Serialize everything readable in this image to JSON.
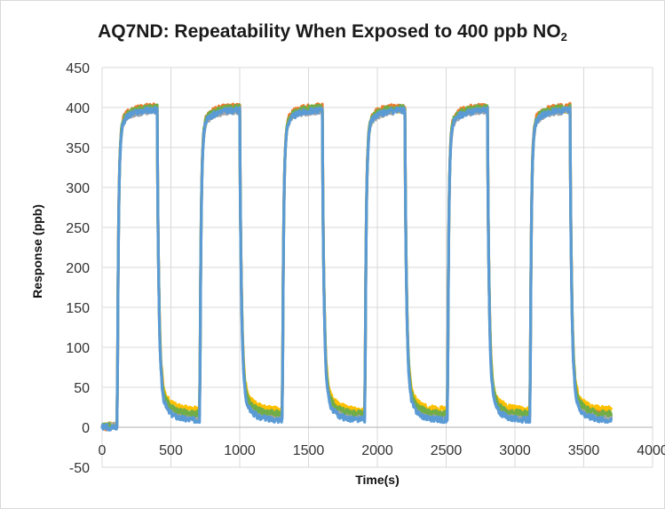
{
  "chart_data": {
    "type": "line",
    "title": "AQ7ND: Repeatability When Exposed to 400 ppb NO",
    "title_subscript": "2",
    "xlabel": "Time(s)",
    "ylabel": "Response (ppb)",
    "xlim": [
      0,
      4000
    ],
    "ylim": [
      -50,
      450
    ],
    "xticks": [
      0,
      500,
      1000,
      1500,
      2000,
      2500,
      3000,
      3500,
      4000
    ],
    "xtick_labels": [
      "0",
      "500",
      "1000",
      "1500",
      "2000",
      "2500",
      "3000",
      "3500",
      "4000"
    ],
    "yticks": [
      -50,
      0,
      50,
      100,
      150,
      200,
      250,
      300,
      350,
      400,
      450
    ],
    "ytick_labels": [
      "-50",
      "0",
      "50",
      "100",
      "150",
      "200",
      "250",
      "300",
      "350",
      "400",
      "450"
    ],
    "grid": "vertical-and-horizontal",
    "legend": "none",
    "exposure_cycles": [
      {
        "on": 110,
        "off": 400
      },
      {
        "on": 710,
        "off": 1000
      },
      {
        "on": 1310,
        "off": 1600
      },
      {
        "on": 1910,
        "off": 2200
      },
      {
        "on": 2510,
        "off": 2800
      },
      {
        "on": 3110,
        "off": 3400
      }
    ],
    "end_time": 3700,
    "series": [
      {
        "color": "#ffc000",
        "plateau": 398,
        "baseline": 22,
        "start": 3
      },
      {
        "color": "#ed7d31",
        "plateau": 402,
        "baseline": 15,
        "start": 0
      },
      {
        "color": "#a5a5a5",
        "plateau": 396,
        "baseline": 12,
        "start": 2
      },
      {
        "color": "#70ad47",
        "plateau": 400,
        "baseline": 17,
        "start": 1
      },
      {
        "color": "#5b9bd5",
        "plateau": 397,
        "baseline": 9,
        "start": 0
      }
    ]
  }
}
